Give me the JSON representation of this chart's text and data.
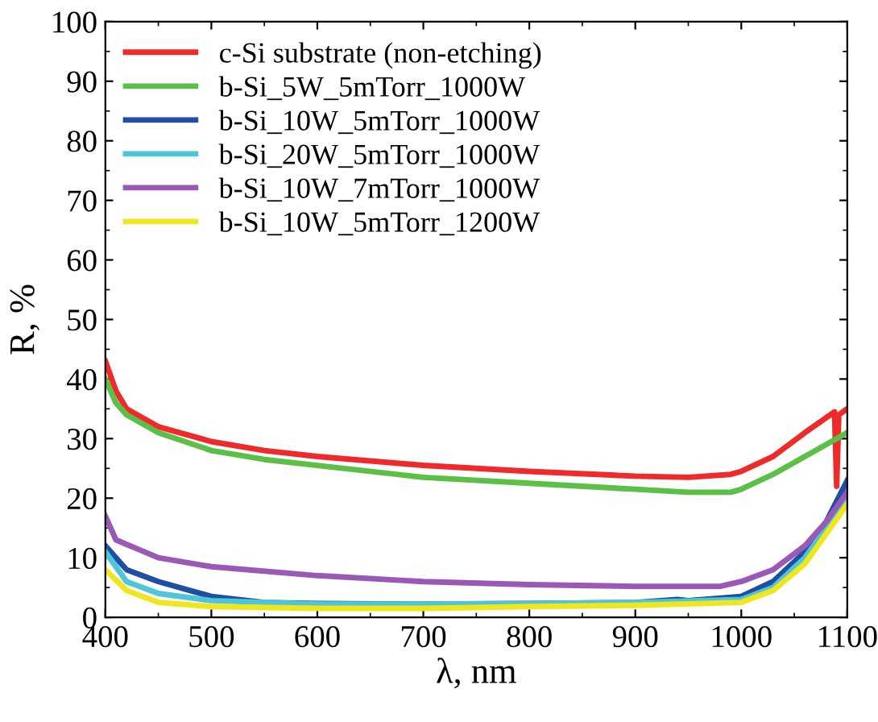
{
  "chart_data": {
    "type": "line",
    "xlabel": "λ, nm",
    "ylabel": "R, %",
    "xlim": [
      400,
      1100
    ],
    "ylim": [
      0,
      100
    ],
    "xticks": [
      400,
      500,
      600,
      700,
      800,
      900,
      1000,
      1100
    ],
    "yticks": [
      0,
      10,
      20,
      30,
      40,
      50,
      60,
      70,
      80,
      90,
      100
    ],
    "grid": false,
    "legend": "top left",
    "marker": "none",
    "line_style": "solid",
    "series": [
      {
        "name": "c-Si substrate (non-etching)",
        "color": "#ee2a2a",
        "x": [
          400,
          410,
          420,
          450,
          500,
          550,
          600,
          700,
          800,
          900,
          950,
          990,
          1000,
          1030,
          1060,
          1080,
          1088,
          1090,
          1092,
          1100
        ],
        "values": [
          43,
          38,
          35,
          32,
          29.5,
          28,
          27,
          25.5,
          24.5,
          23.7,
          23.5,
          24,
          24.5,
          27,
          31,
          33.5,
          34.5,
          22,
          34,
          35
        ]
      },
      {
        "name": "b-Si_5W_5mTorr_1000W",
        "color": "#5cbf47",
        "x": [
          400,
          410,
          420,
          450,
          500,
          550,
          600,
          700,
          800,
          900,
          950,
          990,
          1000,
          1030,
          1060,
          1080,
          1100
        ],
        "values": [
          40,
          36,
          34,
          31,
          28,
          26.5,
          25.5,
          23.5,
          22.5,
          21.5,
          21,
          21,
          21.5,
          24,
          27,
          29,
          31
        ]
      },
      {
        "name": "b-Si_10W_5mTorr_1000W",
        "color": "#1f4fa3",
        "x": [
          400,
          420,
          450,
          480,
          500,
          550,
          600,
          700,
          800,
          900,
          940,
          950,
          1000,
          1030,
          1060,
          1080,
          1100
        ],
        "values": [
          12,
          8,
          6,
          4.5,
          3.5,
          2.5,
          2.3,
          2.2,
          2.3,
          2.5,
          3,
          2.8,
          3.5,
          6,
          11,
          16,
          23
        ]
      },
      {
        "name": "b-Si_20W_5mTorr_1000W",
        "color": "#4ec6d8",
        "x": [
          400,
          420,
          450,
          500,
          600,
          700,
          800,
          900,
          1000,
          1030,
          1060,
          1080,
          1100
        ],
        "values": [
          11,
          6,
          4,
          2.8,
          2.2,
          2.2,
          2.3,
          2.5,
          3,
          5,
          10,
          15,
          20
        ]
      },
      {
        "name": "b-Si_10W_7mTorr_1000W",
        "color": "#9b59b6",
        "x": [
          400,
          410,
          450,
          500,
          600,
          700,
          800,
          900,
          980,
          1000,
          1030,
          1060,
          1080,
          1100
        ],
        "values": [
          17,
          13,
          10,
          8.5,
          7,
          6,
          5.5,
          5.2,
          5.2,
          6,
          8,
          12,
          16,
          21
        ]
      },
      {
        "name": "b-Si_10W_5mTorr_1200W",
        "color": "#f0e620",
        "x": [
          400,
          420,
          450,
          500,
          600,
          700,
          800,
          900,
          1000,
          1030,
          1060,
          1080,
          1100
        ],
        "values": [
          8,
          4.5,
          2.5,
          1.8,
          1.5,
          1.5,
          1.8,
          2,
          2.5,
          4.5,
          9,
          14,
          19
        ]
      }
    ]
  }
}
